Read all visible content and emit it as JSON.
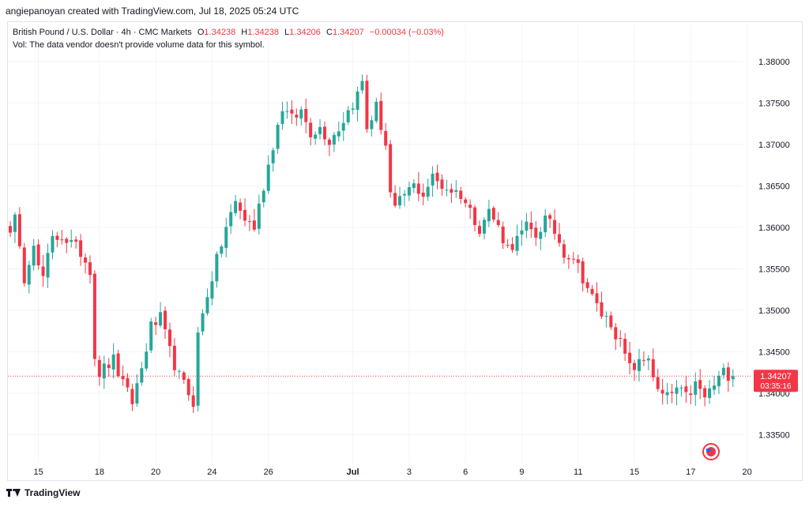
{
  "header": {
    "caption": "angiepanoyan created with TradingView.com, Jul 18, 2025 05:24 UTC"
  },
  "legend": {
    "symbol": "British Pound / U.S. Dollar · 4h · CMC Markets",
    "o_label": "O",
    "o": "1.34238",
    "h_label": "H",
    "h": "1.34238",
    "l_label": "L",
    "l": "1.34206",
    "c_label": "C",
    "c": "1.34207",
    "change": "−0.00034 (−0.03%)",
    "vol_note": "Vol: The data vendor doesn't provide volume data for this symbol."
  },
  "price_tag": {
    "price": "1.34207",
    "countdown": "03:35:16"
  },
  "footer": {
    "brand": "TradingView"
  },
  "colors": {
    "up": "#26a69a",
    "down": "#f23645",
    "grid": "#f0f3fa",
    "axis_text": "#131722"
  },
  "chart_data": {
    "type": "candlestick",
    "title": "British Pound / U.S. Dollar · 4h · CMC Markets",
    "ylim": [
      1.332,
      1.3815
    ],
    "yticks": [
      {
        "value": 1.335,
        "label": "1.33500"
      },
      {
        "value": 1.34,
        "label": "1.34000"
      },
      {
        "value": 1.345,
        "label": "1.34500"
      },
      {
        "value": 1.35,
        "label": "1.35000"
      },
      {
        "value": 1.355,
        "label": "1.35500"
      },
      {
        "value": 1.36,
        "label": "1.36000"
      },
      {
        "value": 1.365,
        "label": "1.36500"
      },
      {
        "value": 1.37,
        "label": "1.37000"
      },
      {
        "value": 1.375,
        "label": "1.37500"
      },
      {
        "value": 1.38,
        "label": "1.38000"
      }
    ],
    "xticks": [
      {
        "bar": 6,
        "label": "15"
      },
      {
        "bar": 19,
        "label": "18"
      },
      {
        "bar": 31,
        "label": "20"
      },
      {
        "bar": 43,
        "label": "24"
      },
      {
        "bar": 55,
        "label": "26"
      },
      {
        "bar": 73,
        "label": "Jul"
      },
      {
        "bar": 85,
        "label": "3"
      },
      {
        "bar": 97,
        "label": "6"
      },
      {
        "bar": 109,
        "label": "9"
      },
      {
        "bar": 121,
        "label": "11"
      },
      {
        "bar": 133,
        "label": "15"
      },
      {
        "bar": 145,
        "label": "17"
      },
      {
        "bar": 157,
        "label": "20"
      }
    ],
    "last_price": 1.34207,
    "anchors": [
      [
        0,
        1.36
      ],
      [
        1,
        1.361
      ],
      [
        2,
        1.357
      ],
      [
        3,
        1.354
      ],
      [
        5,
        1.3585
      ],
      [
        6,
        1.355
      ],
      [
        7,
        1.354
      ],
      [
        9,
        1.3585
      ],
      [
        11,
        1.359
      ],
      [
        13,
        1.358
      ],
      [
        15,
        1.357
      ],
      [
        17,
        1.355
      ],
      [
        18,
        1.3445
      ],
      [
        19,
        1.3425
      ],
      [
        20,
        1.343
      ],
      [
        22,
        1.344
      ],
      [
        24,
        1.341
      ],
      [
        26,
        1.339
      ],
      [
        28,
        1.343
      ],
      [
        30,
        1.348
      ],
      [
        32,
        1.349
      ],
      [
        34,
        1.345
      ],
      [
        36,
        1.342
      ],
      [
        38,
        1.34
      ],
      [
        39,
        1.339
      ],
      [
        40,
        1.347
      ],
      [
        42,
        1.352
      ],
      [
        44,
        1.356
      ],
      [
        46,
        1.36
      ],
      [
        48,
        1.363
      ],
      [
        50,
        1.361
      ],
      [
        52,
        1.36
      ],
      [
        54,
        1.365
      ],
      [
        56,
        1.37
      ],
      [
        58,
        1.3745
      ],
      [
        60,
        1.373
      ],
      [
        62,
        1.374
      ],
      [
        64,
        1.3715
      ],
      [
        66,
        1.372
      ],
      [
        68,
        1.3705
      ],
      [
        70,
        1.372
      ],
      [
        72,
        1.374
      ],
      [
        74,
        1.376
      ],
      [
        75,
        1.3775
      ],
      [
        76,
        1.372
      ],
      [
        78,
        1.3745
      ],
      [
        80,
        1.37
      ],
      [
        81,
        1.364
      ],
      [
        82,
        1.362
      ],
      [
        84,
        1.364
      ],
      [
        86,
        1.365
      ],
      [
        88,
        1.364
      ],
      [
        90,
        1.366
      ],
      [
        92,
        1.365
      ],
      [
        94,
        1.3645
      ],
      [
        96,
        1.364
      ],
      [
        98,
        1.362
      ],
      [
        100,
        1.36
      ],
      [
        102,
        1.362
      ],
      [
        104,
        1.36
      ],
      [
        106,
        1.3575
      ],
      [
        108,
        1.3585
      ],
      [
        110,
        1.36
      ],
      [
        112,
        1.359
      ],
      [
        114,
        1.361
      ],
      [
        116,
        1.3595
      ],
      [
        118,
        1.357
      ],
      [
        120,
        1.3565
      ],
      [
        122,
        1.354
      ],
      [
        124,
        1.3515
      ],
      [
        126,
        1.3495
      ],
      [
        128,
        1.3485
      ],
      [
        130,
        1.346
      ],
      [
        132,
        1.343
      ],
      [
        134,
        1.3435
      ],
      [
        136,
        1.3445
      ],
      [
        138,
        1.34
      ],
      [
        140,
        1.3395
      ],
      [
        142,
        1.3405
      ],
      [
        144,
        1.3395
      ],
      [
        146,
        1.341
      ],
      [
        148,
        1.3395
      ],
      [
        150,
        1.341
      ],
      [
        152,
        1.3425
      ],
      [
        154,
        1.3421
      ]
    ],
    "bar_count": 155
  }
}
